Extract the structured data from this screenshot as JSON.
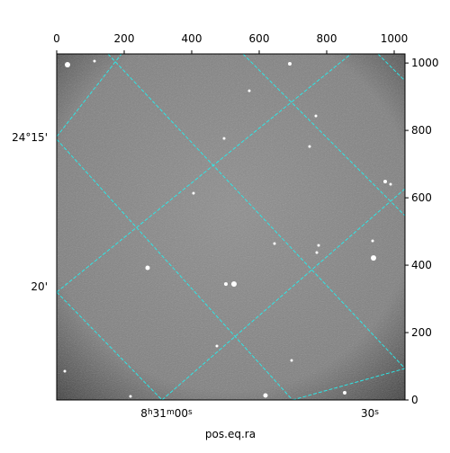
{
  "chart_data": {
    "type": "image",
    "xlabel": "pos.eq.ra",
    "xlim": [
      0,
      1032
    ],
    "ylim": [
      0,
      1027
    ],
    "xticks": [
      0,
      200,
      400,
      600,
      800,
      1000
    ],
    "yticks": [
      0,
      200,
      400,
      600,
      800,
      1000
    ],
    "dec_labels": [
      "24°15'",
      "20'"
    ],
    "ra_labels": [
      {
        "parts": [
          "8",
          "h",
          "31",
          "m",
          "00",
          "s"
        ]
      },
      {
        "parts": [
          "30",
          "s"
        ]
      }
    ]
  }
}
